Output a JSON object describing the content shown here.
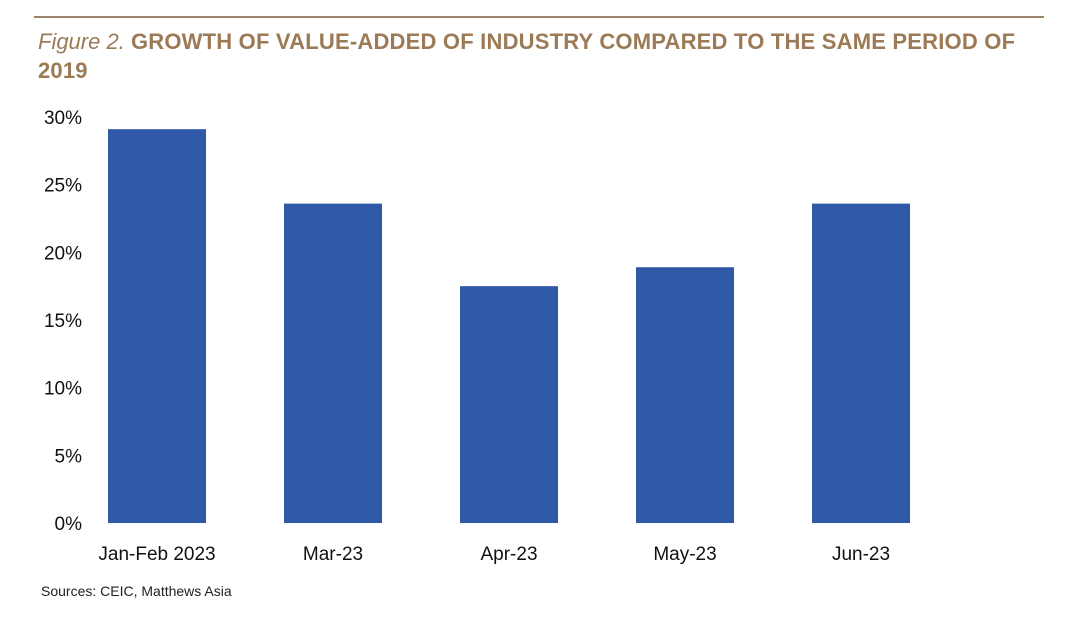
{
  "figure": {
    "label": "Figure 2.",
    "title": "GROWTH OF VALUE-ADDED OF INDUSTRY COMPARED TO THE SAME PERIOD OF 2019",
    "source": "Sources: CEIC, Matthews Asia"
  },
  "colors": {
    "bar": "#2f59a8",
    "title": "#9b7a55",
    "rule": "#9b8468"
  },
  "chart_data": {
    "type": "bar",
    "title": "GROWTH OF VALUE-ADDED OF INDUSTRY COMPARED TO THE SAME PERIOD OF 2019",
    "categories": [
      "Jan-Feb 2023",
      "Mar-23",
      "Apr-23",
      "May-23",
      "Jun-23"
    ],
    "values": [
      29.1,
      23.6,
      17.5,
      18.9,
      23.6
    ],
    "value_format": "percent",
    "ylim": [
      0,
      30
    ],
    "yticks": [
      0,
      5,
      10,
      15,
      20,
      25,
      30
    ],
    "ytick_labels": [
      "0%",
      "5%",
      "10%",
      "15%",
      "20%",
      "25%",
      "30%"
    ],
    "xlabel": "",
    "ylabel": "",
    "grid": false,
    "legend": "none"
  }
}
